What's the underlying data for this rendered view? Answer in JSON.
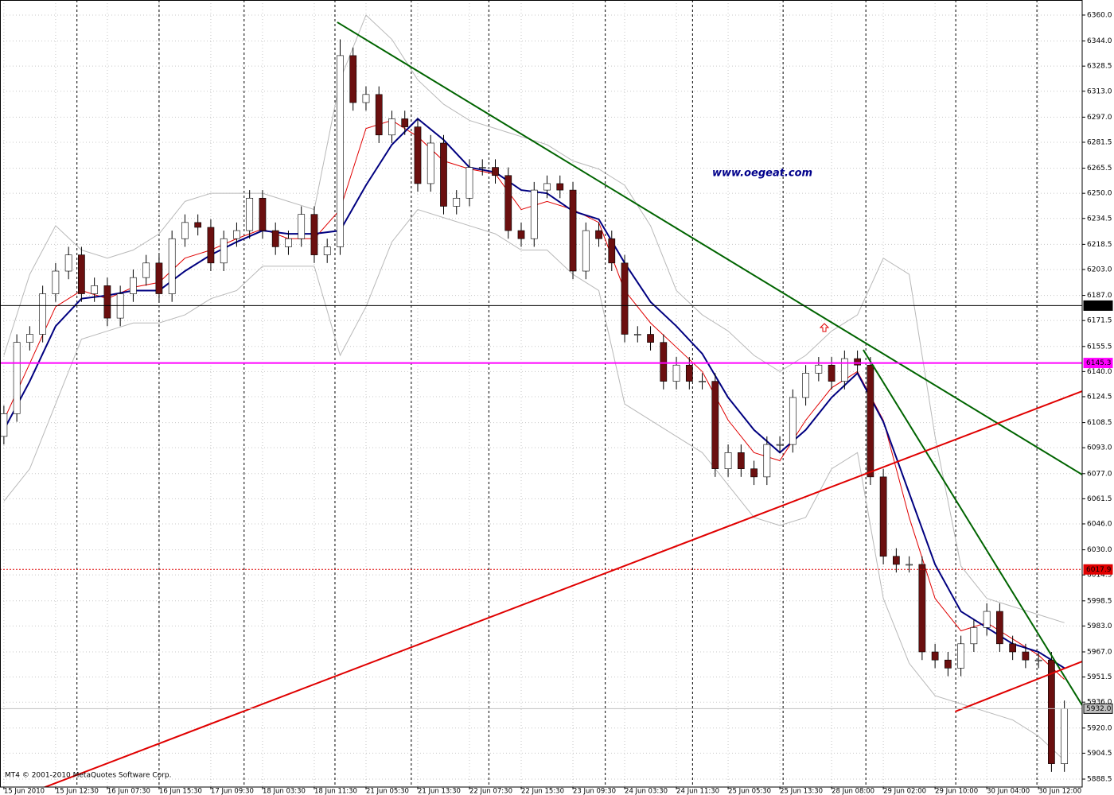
{
  "chart_data": {
    "type": "candlestick",
    "watermark": "www.oegeat.com",
    "copyright": "MT4 © 2001-2010 MetaQuotes Software Corp.",
    "xlim": [
      -1.2,
      333.5
    ],
    "ylim": [
      5883.6,
      6369.3
    ],
    "grid": true,
    "up_color": "#ffffff",
    "down_color": "#6b0f0f",
    "xticks": [
      {
        "value": 0,
        "label": "15 Jun 2010"
      },
      {
        "value": 16,
        "label": "15 Jun 12:30"
      },
      {
        "value": 32,
        "label": "16 Jun 07:30"
      },
      {
        "value": 48,
        "label": "16 Jun 15:30"
      },
      {
        "value": 64,
        "label": "17 Jun 09:30"
      },
      {
        "value": 80,
        "label": "18 Jun 03:30"
      },
      {
        "value": 96,
        "label": "18 Jun 11:30"
      },
      {
        "value": 112,
        "label": "21 Jun 05:30"
      },
      {
        "value": 128,
        "label": "21 Jun 13:30"
      },
      {
        "value": 144,
        "label": "22 Jun 07:30"
      },
      {
        "value": 160,
        "label": "22 Jun 15:30"
      },
      {
        "value": 176,
        "label": "23 Jun 09:30"
      },
      {
        "value": 192,
        "label": "24 Jun 03:30"
      },
      {
        "value": 208,
        "label": "24 Jun 11:30"
      },
      {
        "value": 224,
        "label": "25 Jun 05:30"
      },
      {
        "value": 240,
        "label": "25 Jun 13:30"
      },
      {
        "value": 256,
        "label": "28 Jun 08:00"
      },
      {
        "value": 272,
        "label": "29 Jun 02:00"
      },
      {
        "value": 288,
        "label": "29 Jun 10:00"
      },
      {
        "value": 304,
        "label": "30 Jun 04:00"
      },
      {
        "value": 320,
        "label": "30 Jun 12:00"
      }
    ],
    "yticks": [
      {
        "value": 6360,
        "label": "6360.0"
      },
      {
        "value": 6344,
        "label": "6344.0"
      },
      6328.5,
      {
        "value": 6313,
        "label": "6313.0"
      },
      {
        "value": 6297,
        "label": "6297.0"
      },
      6281.5,
      6265.5,
      {
        "value": 6250,
        "label": "6250.0"
      },
      6234.5,
      6218.5,
      {
        "value": 6203,
        "label": "6203.0"
      },
      {
        "value": 6187,
        "label": "6187.0"
      },
      6171.5,
      6155.5,
      {
        "value": 6140,
        "label": "6140.0"
      },
      6124.5,
      6108.5,
      {
        "value": 6093,
        "label": "6093.0"
      },
      {
        "value": 6077,
        "label": "6077.0"
      },
      6061.5,
      {
        "value": 6046,
        "label": "6046.0"
      },
      {
        "value": 6030,
        "label": "6030.0"
      },
      6014.5,
      5998.5,
      {
        "value": 5983,
        "label": "5983.0"
      },
      {
        "value": 5967,
        "label": "5967.0"
      },
      5951.5,
      {
        "value": 5936,
        "label": "5936.0"
      },
      {
        "value": 5920,
        "label": "5920.0"
      },
      5904.5,
      5888.5
    ],
    "separators": [
      22.6,
      48.0,
      74.3,
      102.4,
      126,
      150,
      186,
      213,
      241,
      266.6,
      294.4,
      319.5
    ],
    "x": [
      0,
      4,
      8,
      12,
      16,
      20,
      24,
      28,
      32,
      36,
      40,
      44,
      48,
      52,
      56,
      60,
      64,
      68,
      72,
      76,
      80,
      84,
      88,
      92,
      96,
      100,
      104,
      108,
      112,
      116,
      120,
      124,
      128,
      132,
      136,
      140,
      144,
      148,
      152,
      156,
      160,
      164,
      168,
      172,
      176,
      180,
      184,
      188,
      192,
      196,
      200,
      204,
      208,
      212,
      216,
      220,
      224,
      228,
      232,
      236,
      240,
      244,
      248,
      252,
      256,
      260,
      264,
      268,
      272,
      276,
      280,
      284,
      288,
      292,
      296,
      300,
      304,
      308,
      312,
      316,
      320,
      324,
      328
    ],
    "open": [
      6100,
      6114,
      6158,
      6163,
      6188,
      6202,
      6212,
      6188,
      6193,
      6173,
      6188,
      6198,
      6207,
      6188,
      6222,
      6232,
      6229,
      6207,
      6222,
      6227,
      6247,
      6227,
      6217,
      6222,
      6237,
      6212,
      6217,
      6335,
      6306,
      6311,
      6286,
      6296,
      6291,
      6256,
      6281,
      6242,
      6247,
      6266,
      6266,
      6261,
      6227,
      6222,
      6252,
      6256,
      6252,
      6202,
      6227,
      6222,
      6207,
      6163,
      6163,
      6158,
      6134,
      6144,
      6134,
      6134,
      6080,
      6090,
      6080,
      6075,
      6095,
      6095,
      6124,
      6139,
      6144,
      6134,
      6148,
      6144,
      6075,
      6026,
      6021,
      6021,
      5967,
      5962,
      5957,
      5972,
      5982,
      5992,
      5972,
      5967,
      5962,
      5962,
      5898
    ],
    "high": [
      6119,
      6163,
      6168,
      6193,
      6207,
      6217,
      6217,
      6198,
      6198,
      6193,
      6203,
      6212,
      6212,
      6227,
      6237,
      6237,
      6234,
      6227,
      6232,
      6252,
      6252,
      6232,
      6227,
      6242,
      6242,
      6222,
      6345,
      6340,
      6316,
      6316,
      6301,
      6301,
      6296,
      6286,
      6286,
      6252,
      6271,
      6271,
      6271,
      6266,
      6232,
      6257,
      6261,
      6261,
      6257,
      6232,
      6232,
      6227,
      6212,
      6168,
      6168,
      6163,
      6149,
      6149,
      6139,
      6139,
      6095,
      6095,
      6085,
      6100,
      6100,
      6129,
      6144,
      6149,
      6149,
      6153,
      6153,
      6149,
      6080,
      6031,
      6026,
      6026,
      5972,
      5967,
      5977,
      5987,
      5997,
      5997,
      5977,
      5972,
      5967,
      5967,
      5937
    ],
    "low": [
      6095,
      6109,
      6153,
      6158,
      6183,
      6197,
      6183,
      6183,
      6168,
      6168,
      6183,
      6193,
      6183,
      6183,
      6217,
      6224,
      6202,
      6202,
      6217,
      6222,
      6222,
      6212,
      6212,
      6217,
      6207,
      6207,
      6212,
      6301,
      6301,
      6281,
      6281,
      6286,
      6251,
      6251,
      6237,
      6237,
      6242,
      6261,
      6256,
      6222,
      6217,
      6217,
      6247,
      6247,
      6197,
      6197,
      6217,
      6202,
      6158,
      6158,
      6153,
      6129,
      6129,
      6129,
      6129,
      6075,
      6075,
      6075,
      6070,
      6070,
      6090,
      6090,
      6119,
      6134,
      6129,
      6129,
      6139,
      6070,
      6021,
      6016,
      6016,
      5962,
      5957,
      5952,
      5952,
      5967,
      5977,
      5967,
      5962,
      5957,
      5957,
      5893,
      5893
    ],
    "close": [
      6114,
      6158,
      6163,
      6188,
      6202,
      6212,
      6188,
      6193,
      6173,
      6188,
      6198,
      6207,
      6188,
      6222,
      6232,
      6229,
      6207,
      6222,
      6227,
      6247,
      6227,
      6217,
      6222,
      6237,
      6212,
      6217,
      6335,
      6306,
      6311,
      6286,
      6296,
      6291,
      6256,
      6281,
      6242,
      6247,
      6266,
      6266,
      6261,
      6227,
      6222,
      6252,
      6256,
      6252,
      6202,
      6227,
      6222,
      6207,
      6163,
      6163,
      6158,
      6134,
      6144,
      6134,
      6134,
      6080,
      6090,
      6080,
      6075,
      6095,
      6095,
      6124,
      6139,
      6144,
      6134,
      6148,
      6144,
      6075,
      6026,
      6021,
      6021,
      5967,
      5962,
      5957,
      5972,
      5982,
      5992,
      5972,
      5967,
      5962,
      5962,
      5898,
      5932
    ],
    "line_x": [
      0,
      8,
      16,
      24,
      32,
      40,
      48,
      56,
      64,
      72,
      80,
      88,
      96,
      104,
      112,
      120,
      128,
      136,
      144,
      152,
      160,
      168,
      176,
      184,
      192,
      200,
      208,
      216,
      224,
      232,
      240,
      248,
      256,
      264,
      272,
      280,
      288,
      296,
      304,
      312,
      320,
      328
    ],
    "lines": [
      {
        "color": "#b8b8b8",
        "width": 1,
        "values": [
          6150,
          6200,
          6230,
          6215,
          6210,
          6215,
          6225,
          6245,
          6250,
          6250,
          6250,
          6245,
          6240,
          6320,
          6360,
          6345,
          6320,
          6305,
          6295,
          6290,
          6285,
          6280,
          6270,
          6265,
          6255,
          6230,
          6190,
          6175,
          6165,
          6150,
          6140,
          6150,
          6165,
          6175,
          6210,
          6200,
          6100,
          6020,
          6000,
          5995,
          5990,
          5985
        ]
      },
      {
        "color": "#b8b8b8",
        "width": 1,
        "values": [
          6060,
          6080,
          6120,
          6160,
          6165,
          6170,
          6170,
          6175,
          6185,
          6190,
          6205,
          6205,
          6205,
          6150,
          6180,
          6220,
          6240,
          6235,
          6230,
          6225,
          6215,
          6215,
          6200,
          6190,
          6120,
          6110,
          6100,
          6090,
          6070,
          6050,
          6045,
          6050,
          6080,
          6090,
          6000,
          5960,
          5940,
          5935,
          5930,
          5925,
          5915,
          5900
        ]
      },
      {
        "color": "#e00000",
        "width": 1,
        "values": [
          6110,
          6145,
          6180,
          6190,
          6185,
          6192,
          6195,
          6210,
          6215,
          6222,
          6228,
          6222,
          6222,
          6240,
          6290,
          6295,
          6285,
          6270,
          6265,
          6262,
          6240,
          6245,
          6240,
          6232,
          6190,
          6170,
          6155,
          6140,
          6110,
          6090,
          6085,
          6110,
          6130,
          6140,
          6110,
          6050,
          6000,
          5980,
          5985,
          5975,
          5965,
          5950
        ]
      },
      {
        "color": "#000080",
        "width": 2,
        "values": [
          6104,
          6134,
          6168,
          6185,
          6187,
          6190,
          6190,
          6202,
          6212,
          6220,
          6227,
          6225,
          6225,
          6227,
          6255,
          6280,
          6296,
          6283,
          6266,
          6263,
          6252,
          6250,
          6239,
          6234,
          6207,
          6183,
          6168,
          6151,
          6124,
          6104,
          6090,
          6104,
          6124,
          6139,
          6109,
          6065,
          6021,
          5992,
          5982,
          5972,
          5967,
          5957
        ]
      }
    ],
    "trendlines": [
      {
        "color": "#006400",
        "x": [
          103.1,
          333.5
        ],
        "values": [
          6355.6,
          6076.4
        ]
      },
      {
        "color": "#006400",
        "x": [
          265.8,
          333.5
        ],
        "values": [
          6153.4,
          5934.1
        ]
      },
      {
        "color": "#e00000",
        "x": [
          6.2,
          333.5
        ],
        "values": [
          5878.6,
          6127.9
        ]
      },
      {
        "color": "#e00000",
        "x": [
          294.2,
          333.5
        ],
        "values": [
          5930.2,
          5961.1
        ]
      }
    ],
    "hlines": [
      {
        "value": 6180.7,
        "color": "#000000",
        "text_color": "#ffffff",
        "dash": "none"
      },
      {
        "value": 6145.3,
        "color": "#ff00ff",
        "text_color": "#ffffff",
        "dash": "none"
      },
      {
        "value": 6017.9,
        "color": "#e00000",
        "text_color": "#ffffff",
        "dash": "2,2"
      },
      {
        "value": 5932,
        "label": "5932.0",
        "color": "#c0c0c0",
        "text_color": "#000000",
        "dash": "none"
      }
    ]
  }
}
